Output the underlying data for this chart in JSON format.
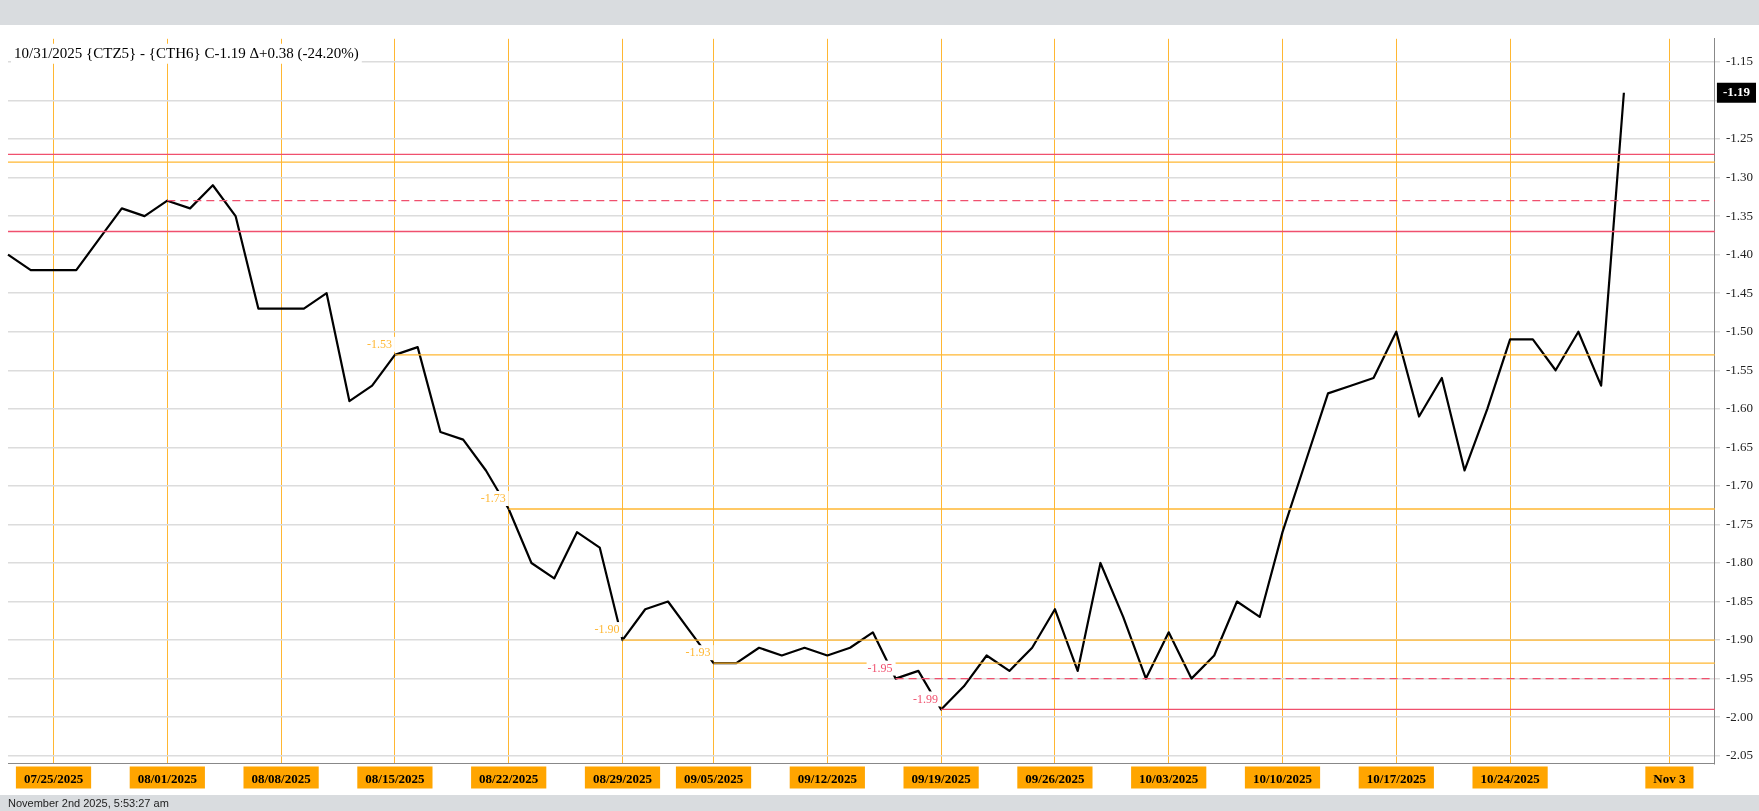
{
  "chart_data": {
    "type": "line",
    "title": "10/31/2025 {CTZ5} - {CTH6} C-1.19 Δ+0.38 (-24.20%)",
    "categories": [
      null,
      null,
      "07/25/2025",
      null,
      null,
      null,
      null,
      "08/01/2025",
      null,
      null,
      null,
      null,
      "08/08/2025",
      null,
      null,
      null,
      null,
      "08/15/2025",
      null,
      null,
      null,
      null,
      "08/22/2025",
      null,
      null,
      null,
      null,
      "08/29/2025",
      null,
      null,
      null,
      "09/05/2025",
      null,
      null,
      null,
      null,
      "09/12/2025",
      null,
      null,
      null,
      null,
      "09/19/2025",
      null,
      null,
      null,
      null,
      "09/26/2025",
      null,
      null,
      null,
      null,
      "10/03/2025",
      null,
      null,
      null,
      null,
      "10/10/2025",
      null,
      null,
      null,
      null,
      "10/17/2025",
      null,
      null,
      null,
      null,
      "10/24/2025",
      null,
      null,
      null,
      null,
      null,
      null,
      "Nov 3",
      null,
      null
    ],
    "series": [
      {
        "color": "#000000",
        "values": [
          -1.4,
          -1.42,
          -1.42,
          -1.42,
          -1.38,
          -1.34,
          -1.35,
          -1.33,
          -1.34,
          -1.31,
          -1.35,
          -1.47,
          -1.47,
          -1.47,
          -1.45,
          -1.59,
          -1.57,
          -1.53,
          -1.52,
          -1.63,
          -1.64,
          -1.68,
          -1.73,
          -1.8,
          -1.82,
          -1.76,
          -1.78,
          -1.9,
          -1.86,
          -1.85,
          -1.89,
          -1.93,
          -1.93,
          -1.91,
          -1.92,
          -1.91,
          -1.92,
          -1.91,
          -1.89,
          -1.95,
          -1.94,
          -1.99,
          -1.96,
          -1.92,
          -1.94,
          -1.91,
          -1.86,
          -1.94,
          -1.8,
          -1.87,
          -1.95,
          -1.89,
          -1.95,
          -1.92,
          -1.85,
          -1.87,
          -1.76,
          -1.67,
          -1.58,
          -1.57,
          -1.56,
          -1.5,
          -1.61,
          -1.56,
          -1.68,
          -1.6,
          -1.51,
          -1.51,
          -1.55,
          -1.5,
          -1.57,
          -1.19,
          null,
          null,
          null,
          null
        ]
      }
    ],
    "ylim": [
      -2.06,
      -1.12
    ],
    "yticks": [
      -1.15,
      {
        "value": -1.2,
        "label": null
      },
      -1.25,
      {
        "value": -1.3,
        "label": "-1.30"
      },
      -1.35,
      {
        "value": -1.4,
        "label": "-1.40"
      },
      -1.45,
      {
        "value": -1.5,
        "label": "-1.50"
      },
      -1.55,
      {
        "value": -1.6,
        "label": "-1.60"
      },
      -1.65,
      {
        "value": -1.7,
        "label": "-1.70"
      },
      -1.75,
      {
        "value": -1.8,
        "label": "-1.80"
      },
      -1.85,
      {
        "value": -1.9,
        "label": "-1.90"
      },
      -1.95,
      {
        "value": -2.0,
        "label": "-2.00"
      },
      -2.05
    ],
    "ref_lines": [
      {
        "axis": "y",
        "value": -1.27,
        "color": "#f0506e",
        "line_style": "solid"
      },
      {
        "axis": "y",
        "value": -1.28,
        "color": "#ffb732",
        "line_style": "solid"
      },
      {
        "axis": "y",
        "value": -1.33,
        "color": "#f0506e",
        "line_style": "dashed"
      },
      {
        "axis": "y",
        "value": -1.37,
        "color": "#f0506e",
        "line_style": "solid"
      },
      {
        "axis": "y",
        "value": -1.53,
        "label": "-1.53",
        "color": "#ffb732",
        "line_style": "solid"
      },
      {
        "axis": "y",
        "value": -1.73,
        "label": "-1.73",
        "color": "#ffb732",
        "line_style": "solid"
      },
      {
        "axis": "y",
        "value": -1.9,
        "label": "-1.90",
        "color": "#ffb732",
        "line_style": "solid"
      },
      {
        "axis": "y",
        "value": -1.93,
        "label": "-1.93",
        "color": "#ffb732",
        "line_style": "solid"
      },
      {
        "axis": "y",
        "value": -1.95,
        "label": "-1.95",
        "color": "#f0506e",
        "line_style": "dashed"
      },
      {
        "axis": "y",
        "value": -1.99,
        "label": "-1.99",
        "color": "#f0506e",
        "line_style": "solid"
      }
    ],
    "annotations": [
      {
        "text": "-1.19",
        "y": -1.19
      },
      "November 2nd 2025, 5:53:27 am"
    ],
    "grid": true,
    "marker": "none",
    "line_style": "solid",
    "legend": false
  }
}
